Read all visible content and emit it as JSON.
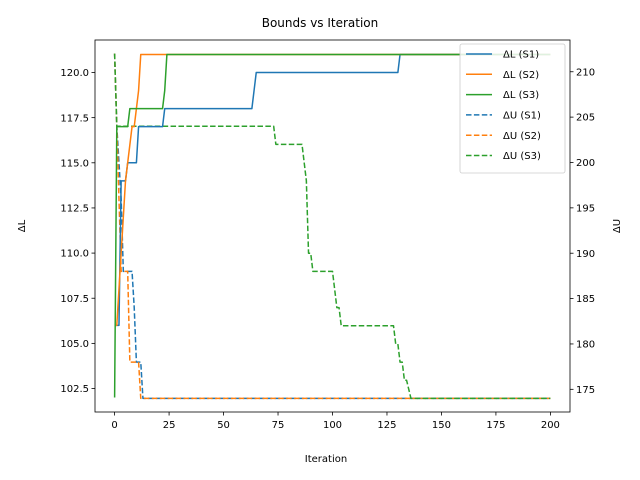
{
  "chart_data": {
    "type": "line",
    "title": "Bounds vs Iteration",
    "xlabel": "Iteration",
    "ylabel_left": "ΔL",
    "ylabel_right": "ΔU",
    "xlim": [
      -9,
      209
    ],
    "ylim_left": [
      101.2,
      121.8
    ],
    "ylim_right": [
      172.5,
      213.5
    ],
    "xticks": [
      0,
      25,
      50,
      75,
      100,
      125,
      150,
      175,
      200
    ],
    "yticks_left": [
      102.5,
      105.0,
      107.5,
      110.0,
      112.5,
      115.0,
      117.5,
      120.0
    ],
    "yticks_right": [
      175,
      180,
      185,
      190,
      195,
      200,
      205,
      210
    ],
    "grid": false,
    "legend_position": "top-right",
    "colors": {
      "S1": "#1f77b4",
      "S2": "#ff7f0e",
      "S3": "#2ca02c"
    },
    "series": [
      {
        "name": "ΔL (S1)",
        "axis": "left",
        "style": "solid",
        "color": "#1f77b4",
        "x": [
          0,
          1,
          2,
          3,
          4,
          5,
          6,
          7,
          8,
          9,
          10,
          11,
          12,
          13,
          20,
          21,
          22,
          23,
          24,
          63,
          64,
          65,
          66,
          130,
          131,
          132,
          200
        ],
        "y": [
          106,
          106,
          106,
          114,
          114,
          114,
          115,
          115,
          115,
          115,
          115,
          117,
          117,
          117,
          117,
          117,
          117,
          118,
          118,
          118,
          119,
          120,
          120,
          120,
          121,
          121,
          121
        ]
      },
      {
        "name": "ΔL (S2)",
        "axis": "left",
        "style": "solid",
        "color": "#ff7f0e",
        "x": [
          0,
          1,
          2,
          3,
          4,
          5,
          6,
          7,
          8,
          9,
          10,
          11,
          12,
          13,
          200
        ],
        "y": [
          106,
          106,
          108,
          110,
          112,
          114,
          115,
          116,
          117,
          117,
          118,
          119,
          121,
          121,
          121
        ]
      },
      {
        "name": "ΔL (S3)",
        "axis": "left",
        "style": "solid",
        "color": "#2ca02c",
        "x": [
          0,
          1,
          2,
          3,
          4,
          5,
          6,
          7,
          8,
          22,
          23,
          24,
          200
        ],
        "y": [
          102,
          117,
          117,
          117,
          117,
          117,
          117,
          118,
          118,
          118,
          119,
          121,
          121
        ]
      },
      {
        "name": "ΔU (S1)",
        "axis": "right",
        "style": "dashed",
        "color": "#1f77b4",
        "x": [
          0,
          1,
          2,
          3,
          4,
          5,
          6,
          7,
          8,
          9,
          10,
          11,
          12,
          13,
          200
        ],
        "y": [
          212,
          204,
          200,
          196,
          188,
          188,
          188,
          188,
          188,
          184,
          178,
          178,
          178,
          174,
          174
        ]
      },
      {
        "name": "ΔU (S2)",
        "axis": "right",
        "style": "dashed",
        "color": "#ff7f0e",
        "x": [
          0,
          1,
          2,
          3,
          4,
          5,
          6,
          7,
          8,
          9,
          10,
          11,
          12,
          13,
          200
        ],
        "y": [
          212,
          204,
          196,
          188,
          188,
          188,
          188,
          178,
          178,
          178,
          178,
          178,
          174,
          174,
          174
        ]
      },
      {
        "name": "ΔU (S3)",
        "axis": "right",
        "style": "dashed",
        "color": "#2ca02c",
        "x": [
          0,
          1,
          2,
          72,
          73,
          74,
          85,
          86,
          87,
          88,
          89,
          90,
          91,
          98,
          99,
          100,
          101,
          102,
          103,
          104,
          127,
          128,
          129,
          130,
          131,
          132,
          133,
          134,
          135,
          136,
          200
        ],
        "y": [
          212,
          204,
          204,
          204,
          204,
          202,
          202,
          202,
          200,
          198,
          190,
          190,
          188,
          188,
          188,
          188,
          186,
          184,
          184,
          182,
          182,
          182,
          180,
          180,
          178,
          178,
          176,
          176,
          175,
          174,
          174
        ]
      }
    ]
  }
}
